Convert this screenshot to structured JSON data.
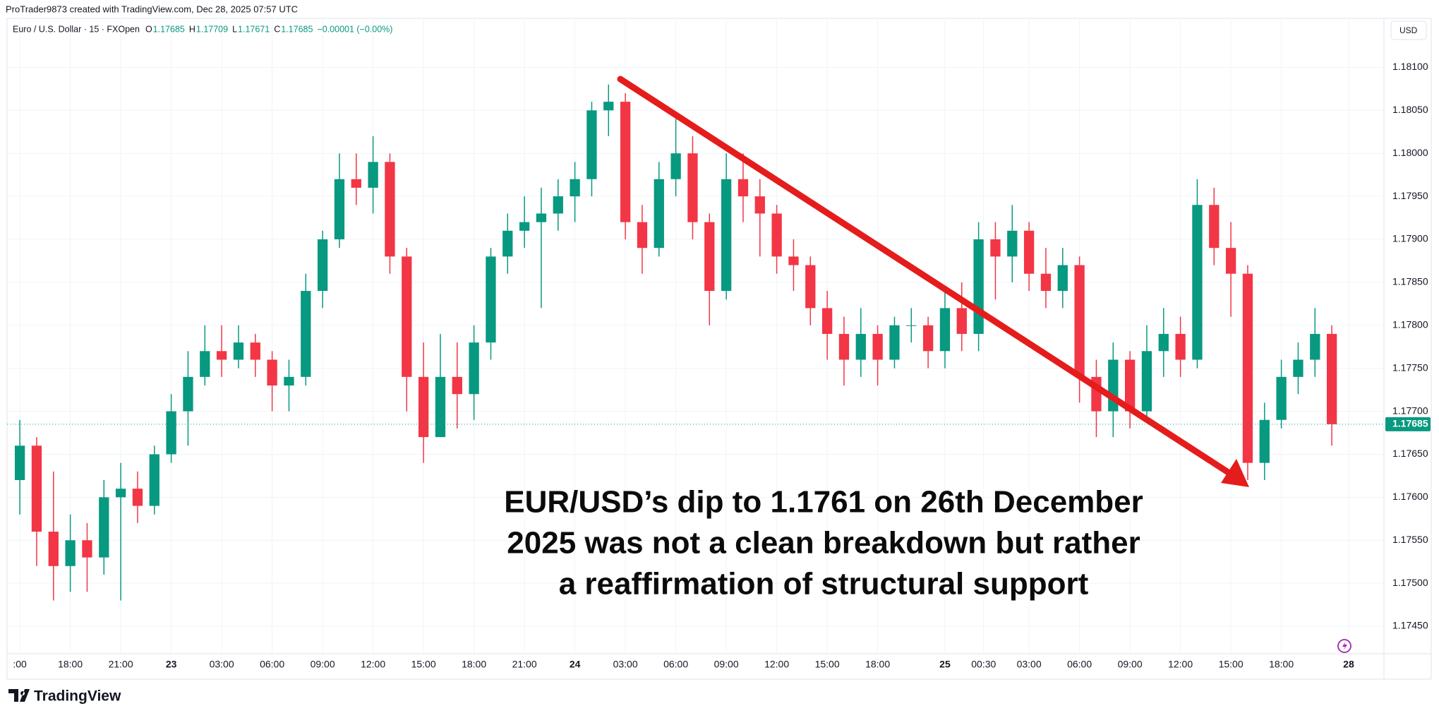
{
  "header": {
    "credit": "ProTrader9873 created with TradingView.com, Dec 28, 2025 07:57 UTC",
    "currency_button": "USD",
    "brand": "TradingView"
  },
  "chart_data": {
    "type": "candlestick",
    "legend": {
      "name": "Euro / U.S. Dollar · 15 · FXOpen",
      "fields": [
        {
          "key": "O",
          "value": "1.17685"
        },
        {
          "key": "H",
          "value": "1.17709"
        },
        {
          "key": "L",
          "value": "1.17671"
        },
        {
          "key": "C",
          "value": "1.17685"
        }
      ],
      "change": "−0.00001 (−0.00%)"
    },
    "annotation": [
      "EUR/USD’s dip to 1.1761 on 26th December",
      "2025 was not a clean breakdown but rather",
      "a reaffirmation of structural support"
    ],
    "up_color": "#089981",
    "down_color": "#f23645",
    "open": [
      1.1762,
      1.1766,
      1.1756,
      1.1752,
      1.1755,
      1.1753,
      1.176,
      1.1761,
      1.1759,
      1.1765,
      1.177,
      1.1774,
      1.1777,
      1.1776,
      1.1778,
      1.1776,
      1.1773,
      1.1774,
      1.1784,
      1.179,
      1.1797,
      1.1796,
      1.1799,
      1.1788,
      1.1774,
      1.1767,
      1.1774,
      1.1772,
      1.1778,
      1.1788,
      1.1791,
      1.1792,
      1.1793,
      1.1795,
      1.1797,
      1.1805,
      1.1806,
      1.1792,
      1.1789,
      1.1797,
      1.18,
      1.1792,
      1.1784,
      1.1797,
      1.1795,
      1.1793,
      1.1788,
      1.1787,
      1.1782,
      1.1779,
      1.1776,
      1.1779,
      1.1776,
      1.178,
      1.178,
      1.1777,
      1.1782,
      1.1779,
      1.179,
      1.1788,
      1.1791,
      1.1786,
      1.1784,
      1.1787,
      1.1774,
      1.177,
      1.1776,
      1.177,
      1.1777,
      1.1779,
      1.1776,
      1.1794,
      1.1789,
      1.1786,
      1.1764,
      1.1769,
      1.1774,
      1.1776,
      1.1779
    ],
    "high": [
      1.1769,
      1.1767,
      1.1763,
      1.1758,
      1.1757,
      1.1762,
      1.1764,
      1.1763,
      1.1766,
      1.1772,
      1.1777,
      1.178,
      1.178,
      1.178,
      1.1779,
      1.1777,
      1.1776,
      1.1786,
      1.1791,
      1.18,
      1.18,
      1.1802,
      1.18,
      1.1789,
      1.1778,
      1.1779,
      1.1778,
      1.178,
      1.1789,
      1.1793,
      1.1795,
      1.1796,
      1.1797,
      1.1799,
      1.1806,
      1.1808,
      1.1807,
      1.1794,
      1.1799,
      1.1804,
      1.1802,
      1.1793,
      1.18,
      1.18,
      1.1797,
      1.1794,
      1.179,
      1.1788,
      1.1784,
      1.1781,
      1.1782,
      1.178,
      1.1781,
      1.1782,
      1.1781,
      1.1784,
      1.1785,
      1.1792,
      1.1792,
      1.1794,
      1.1792,
      1.1789,
      1.1789,
      1.1788,
      1.1776,
      1.1778,
      1.1777,
      1.178,
      1.1782,
      1.1781,
      1.1797,
      1.1796,
      1.1792,
      1.1787,
      1.1771,
      1.1776,
      1.1778,
      1.1782,
      1.178
    ],
    "low": [
      1.1758,
      1.1752,
      1.1748,
      1.1749,
      1.1749,
      1.1751,
      1.1748,
      1.1757,
      1.1758,
      1.1764,
      1.1766,
      1.1773,
      1.1774,
      1.1775,
      1.1774,
      1.177,
      1.177,
      1.1773,
      1.1782,
      1.1789,
      1.1794,
      1.1793,
      1.1786,
      1.177,
      1.1764,
      1.1767,
      1.1768,
      1.1769,
      1.1776,
      1.1786,
      1.1789,
      1.1782,
      1.1791,
      1.1792,
      1.1795,
      1.1802,
      1.179,
      1.1786,
      1.1788,
      1.1795,
      1.179,
      1.178,
      1.1783,
      1.1792,
      1.1788,
      1.1786,
      1.1784,
      1.178,
      1.1776,
      1.1773,
      1.1774,
      1.1773,
      1.1775,
      1.1778,
      1.1775,
      1.1775,
      1.1777,
      1.1777,
      1.1783,
      1.1785,
      1.1784,
      1.1782,
      1.1782,
      1.1771,
      1.1767,
      1.1767,
      1.1768,
      1.1769,
      1.1774,
      1.1774,
      1.1775,
      1.1787,
      1.1781,
      1.1762,
      1.1762,
      1.1768,
      1.1772,
      1.1774,
      1.1766
    ],
    "close": [
      1.1766,
      1.1756,
      1.1752,
      1.1755,
      1.1753,
      1.176,
      1.1761,
      1.1759,
      1.1765,
      1.177,
      1.1774,
      1.1777,
      1.1776,
      1.1778,
      1.1776,
      1.1773,
      1.1774,
      1.1784,
      1.179,
      1.1797,
      1.1796,
      1.1799,
      1.1788,
      1.1774,
      1.1767,
      1.1774,
      1.1772,
      1.1778,
      1.1788,
      1.1791,
      1.1792,
      1.1793,
      1.1795,
      1.1797,
      1.1805,
      1.1806,
      1.1792,
      1.1789,
      1.1797,
      1.18,
      1.1792,
      1.1784,
      1.1797,
      1.1795,
      1.1793,
      1.1788,
      1.1787,
      1.1782,
      1.1779,
      1.1776,
      1.1779,
      1.1776,
      1.178,
      1.178,
      1.1777,
      1.1782,
      1.1779,
      1.179,
      1.1788,
      1.1791,
      1.1786,
      1.1784,
      1.1787,
      1.1774,
      1.177,
      1.1776,
      1.177,
      1.1777,
      1.1779,
      1.1776,
      1.1794,
      1.1789,
      1.1786,
      1.1764,
      1.1769,
      1.1774,
      1.1776,
      1.1779,
      1.17685
    ],
    "last_price": 1.17685,
    "xlim": [
      -0.76,
      81.1
    ],
    "xticks": [
      {
        "value": 0,
        "label": ":00"
      },
      {
        "value": 3,
        "label": "18:00"
      },
      {
        "value": 6,
        "label": "21:00"
      },
      {
        "value": 9,
        "label": "23"
      },
      {
        "value": 12,
        "label": "03:00"
      },
      {
        "value": 15,
        "label": "06:00"
      },
      {
        "value": 18,
        "label": "09:00"
      },
      {
        "value": 21,
        "label": "12:00"
      },
      {
        "value": 24,
        "label": "15:00"
      },
      {
        "value": 27,
        "label": "18:00"
      },
      {
        "value": 30,
        "label": "21:00"
      },
      {
        "value": 33,
        "label": "24"
      },
      {
        "value": 36,
        "label": "03:00"
      },
      {
        "value": 39,
        "label": "06:00"
      },
      {
        "value": 42,
        "label": "09:00"
      },
      {
        "value": 45,
        "label": "12:00"
      },
      {
        "value": 48,
        "label": "15:00"
      },
      {
        "value": 51,
        "label": "18:00"
      },
      {
        "value": 55,
        "label": "25"
      },
      {
        "value": 57.3,
        "label": "00:30"
      },
      {
        "value": 60,
        "label": "03:00"
      },
      {
        "value": 63,
        "label": "06:00"
      },
      {
        "value": 66,
        "label": "09:00"
      },
      {
        "value": 69,
        "label": "12:00"
      },
      {
        "value": 72,
        "label": "15:00"
      },
      {
        "value": 75,
        "label": "18:00"
      },
      {
        "value": 79,
        "label": "28"
      }
    ],
    "ylim": [
      1.17418,
      1.18157
    ],
    "yticks": [
      {
        "value": 1.181,
        "label": "1.18100"
      },
      {
        "value": 1.1805,
        "label": "1.18050"
      },
      {
        "value": 1.18,
        "label": "1.18000"
      },
      {
        "value": 1.1795,
        "label": "1.17950"
      },
      {
        "value": 1.179,
        "label": "1.17900"
      },
      {
        "value": 1.1785,
        "label": "1.17850"
      },
      {
        "value": 1.178,
        "label": "1.17800"
      },
      {
        "value": 1.1775,
        "label": "1.17750"
      },
      {
        "value": 1.177,
        "label": "1.17700"
      },
      {
        "value": 1.1765,
        "label": "1.17650"
      },
      {
        "value": 1.176,
        "label": "1.17600"
      },
      {
        "value": 1.1755,
        "label": "1.17550"
      },
      {
        "value": 1.175,
        "label": "1.17500"
      },
      {
        "value": 1.1745,
        "label": "1.17450"
      }
    ],
    "grid": true
  }
}
